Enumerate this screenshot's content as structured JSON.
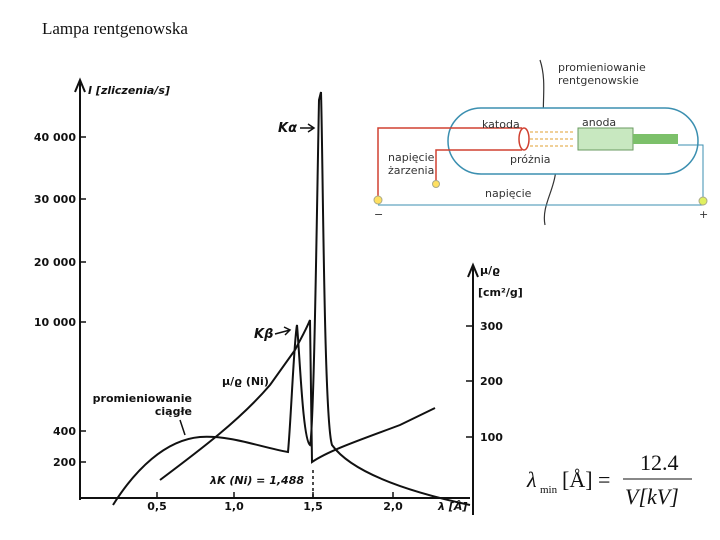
{
  "title": "Lampa rentgenowska",
  "spectrum": {
    "y_axis_label": "I [zliczenia/s]",
    "y_ticks": [
      "40 000",
      "30 000",
      "20 000",
      "10 000",
      "400",
      "200"
    ],
    "x_ticks": [
      "0,5",
      "1,0",
      "1,5",
      "2,0"
    ],
    "x_axis_label": "λ [Å]",
    "y2_axis_label": "μ/ϱ",
    "y2_unit": "[cm²/g]",
    "y2_ticks": [
      "300",
      "200",
      "100"
    ],
    "annotations": {
      "k_alpha": "Kα",
      "k_beta": "Kβ",
      "absorption": "μ/ϱ (Ni)",
      "continuous_1": "promieniowanie",
      "continuous_2": "ciągłe",
      "edge": "λK (Ni) = 1,488"
    }
  },
  "tube": {
    "radiation_1": "promieniowanie",
    "radiation_2": "rentgenowskie",
    "cathode": "katoda",
    "anode": "anoda",
    "heater_1": "napięcie",
    "heater_2": "żarzenia",
    "vacuum": "próżnia",
    "voltage": "napięcie",
    "minus": "−",
    "plus": "+"
  },
  "formula": {
    "lambda": "λ",
    "sub": "min",
    "unit": "[Å] =",
    "numerator": "12.4",
    "denominator": "V[kV]"
  }
}
